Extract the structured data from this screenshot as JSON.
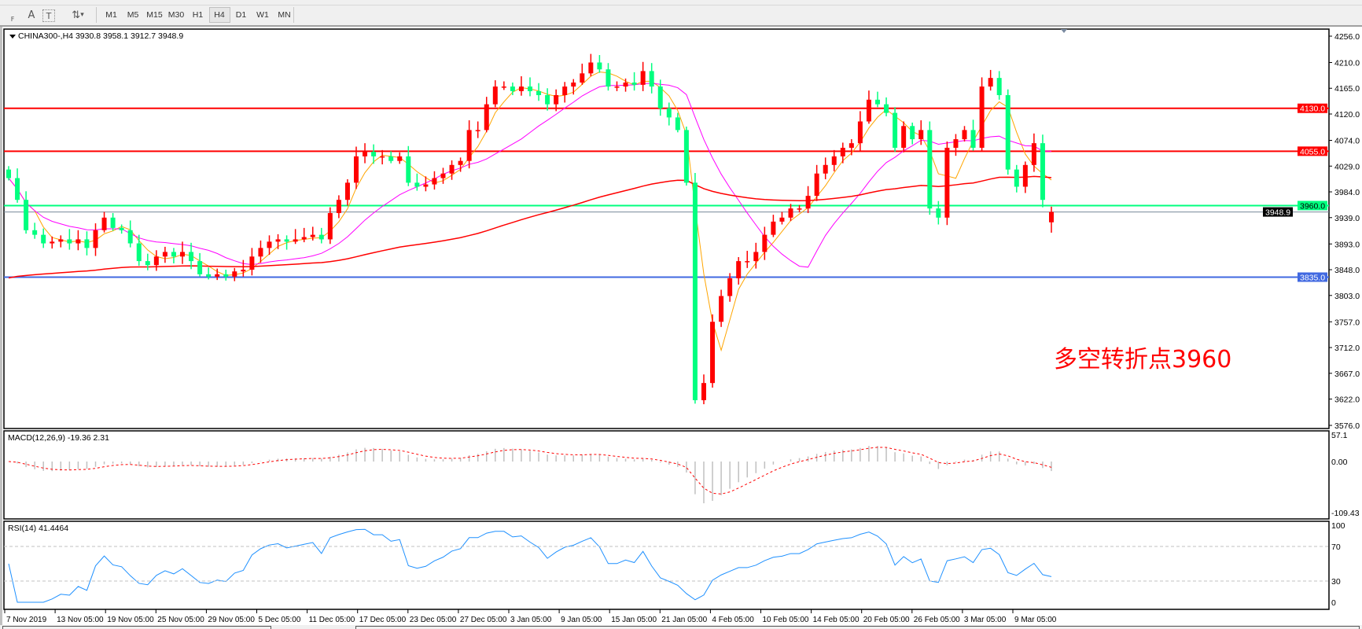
{
  "toolbar": {
    "tools": [
      {
        "icon": "grid-icon",
        "label": "F"
      },
      {
        "icon": "text-icon",
        "label": "A"
      },
      {
        "icon": "text-label-icon",
        "label": "T"
      },
      {
        "icon": "arrows-icon",
        "label": "▾"
      }
    ],
    "timeframes": [
      "M1",
      "M5",
      "M15",
      "M30",
      "H1",
      "H4",
      "D1",
      "W1",
      "MN"
    ],
    "active_timeframe": "H4"
  },
  "chart": {
    "header": "CHINA300-,H4  3930.8 3958.1 3912.7 3948.9",
    "annotation": "多空转折点3960",
    "annotation_color": "#ff0000",
    "bull_color": "#ff0000",
    "bear_color": "#00ff7f"
  },
  "macd": {
    "label": "MACD(12,26,9) -19.36 2.31",
    "axis": [
      "57.1",
      "0.00",
      "-109.43"
    ]
  },
  "rsi": {
    "label": "RSI(14) 41.4464",
    "axis": [
      "100",
      "70",
      "30",
      "0"
    ]
  },
  "chart_data": {
    "type": "candlestick",
    "symbol": "CHINA300-",
    "timeframe": "H4",
    "last_bar": {
      "open": 3930.8,
      "high": 3958.1,
      "low": 3912.7,
      "close": 3948.9
    },
    "ylim": [
      3576,
      4256
    ],
    "price_ticks": [
      "4256.0",
      "4210.0",
      "4165.0",
      "4120.0",
      "4074.0",
      "4029.0",
      "3984.0",
      "3939.0",
      "3893.0",
      "3848.0",
      "3803.0",
      "3757.0",
      "3712.0",
      "3667.0",
      "3622.0",
      "3576.0"
    ],
    "x_ticks": [
      "7 Nov 2019",
      "13 Nov 05:00",
      "19 Nov 05:00",
      "25 Nov 05:00",
      "29 Nov 05:00",
      "5 Dec 05:00",
      "11 Dec 05:00",
      "17 Dec 05:00",
      "23 Dec 05:00",
      "27 Dec 05:00",
      "3 Jan 05:00",
      "9 Jan 05:00",
      "15 Jan 05:00",
      "21 Jan 05:00",
      "4 Feb 05:00",
      "10 Feb 05:00",
      "14 Feb 05:00",
      "20 Feb 05:00",
      "26 Feb 05:00",
      "3 Mar 05:00",
      "9 Mar 05:00"
    ],
    "close": [
      4008,
      3970,
      3917,
      3909,
      3894,
      3897,
      3901,
      3894,
      3901,
      3886,
      3917,
      3939,
      3921,
      3917,
      3894,
      3863,
      3856,
      3871,
      3879,
      3871,
      3879,
      3863,
      3840,
      3836,
      3840,
      3836,
      3845,
      3848,
      3871,
      3886,
      3897,
      3901,
      3897,
      3901,
      3905,
      3909,
      3901,
      3947,
      3970,
      4000,
      4046,
      4054,
      4046,
      4046,
      4038,
      4046,
      4000,
      3993,
      3997,
      4008,
      4016,
      4031,
      4038,
      4092,
      4092,
      4137,
      4168,
      4168,
      4160,
      4168,
      4160,
      4153,
      4137,
      4153,
      4168,
      4175,
      4191,
      4210,
      4198,
      4168,
      4168,
      4175,
      4171,
      4195,
      4168,
      4130,
      4114,
      4092,
      4000,
      3620,
      3650,
      3757,
      3802,
      3833,
      3863,
      3863,
      3879,
      3909,
      3932,
      3939,
      3955,
      3955,
      3977,
      4016,
      4031,
      4046,
      4061,
      4069,
      4107,
      4145,
      4137,
      4122,
      4061,
      4099,
      4076,
      4092,
      3955,
      3939,
      4061,
      4076,
      4092,
      4061,
      4168,
      4183,
      4153,
      4023,
      3993,
      4031,
      4069,
      3970,
      3948.9
    ],
    "levels": [
      {
        "price": 4130.0,
        "label": "4130.0",
        "color": "#ff0000"
      },
      {
        "price": 4055.0,
        "label": "4055.0",
        "color": "#ff0000"
      },
      {
        "price": 3960.0,
        "label": "3960.0",
        "color": "#00ff7f"
      },
      {
        "price": 3835.0,
        "label": "3835.0",
        "color": "#4169e1"
      }
    ],
    "current_price": {
      "price": 3948.9,
      "label": "3948.9",
      "color": "#778899"
    },
    "moving_averages": [
      {
        "color": "#ffa500"
      },
      {
        "color": "#ff00ff"
      },
      {
        "color": "#ff0000"
      }
    ],
    "grid": false
  }
}
